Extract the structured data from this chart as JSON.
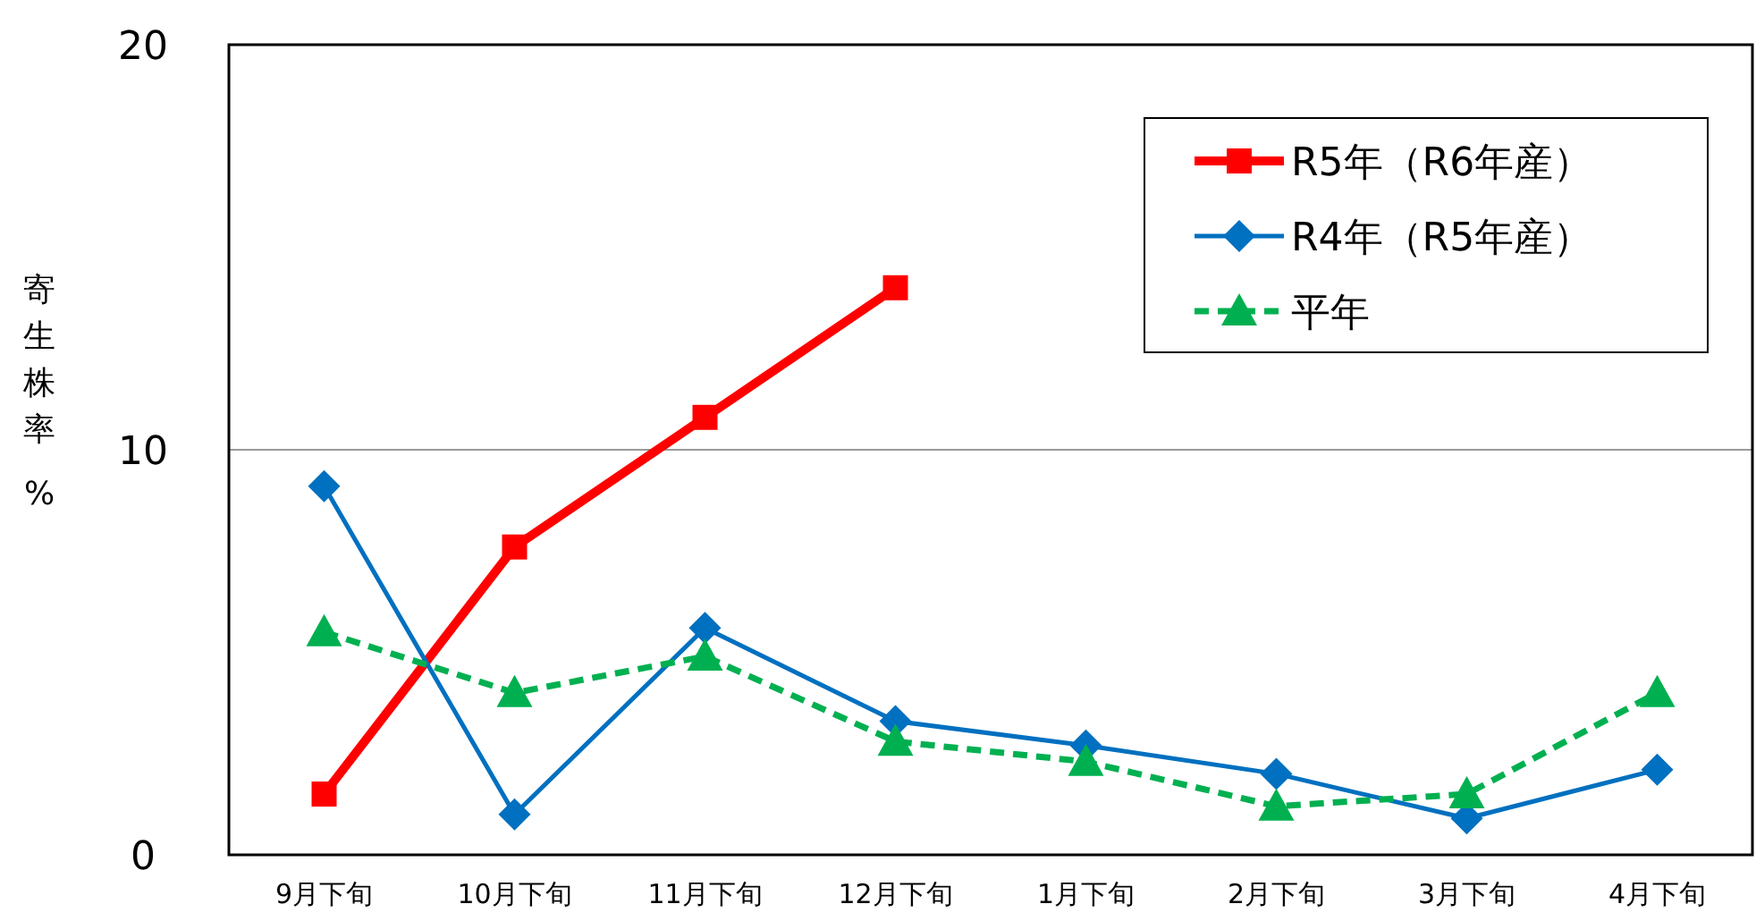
{
  "chart_data": {
    "type": "line",
    "ylabel": "寄生株率 %",
    "categories": [
      "9月下旬",
      "10月下旬",
      "11月下旬",
      "12月下旬",
      "1月下旬",
      "2月下旬",
      "3月下旬",
      "4月下旬"
    ],
    "series": [
      {
        "name": "R5年（R6年産）",
        "color": "#ff0000",
        "marker": "square",
        "line_style": "solid",
        "values": [
          1.5,
          7.6,
          10.8,
          14.0,
          null,
          null,
          null,
          null
        ]
      },
      {
        "name": "R4年（R5年産）",
        "color": "#0070c0",
        "marker": "diamond",
        "line_style": "solid",
        "values": [
          9.1,
          1.0,
          5.6,
          3.3,
          2.7,
          2.0,
          0.9,
          2.1
        ]
      },
      {
        "name": "平年",
        "color": "#00b050",
        "marker": "triangle",
        "line_style": "dashed",
        "values": [
          5.5,
          4.0,
          4.9,
          2.8,
          2.3,
          1.2,
          1.5,
          4.0
        ]
      }
    ],
    "ylim": [
      0,
      20
    ],
    "yticks": [
      0,
      10,
      20
    ],
    "grid": "y",
    "legend": "top right"
  }
}
